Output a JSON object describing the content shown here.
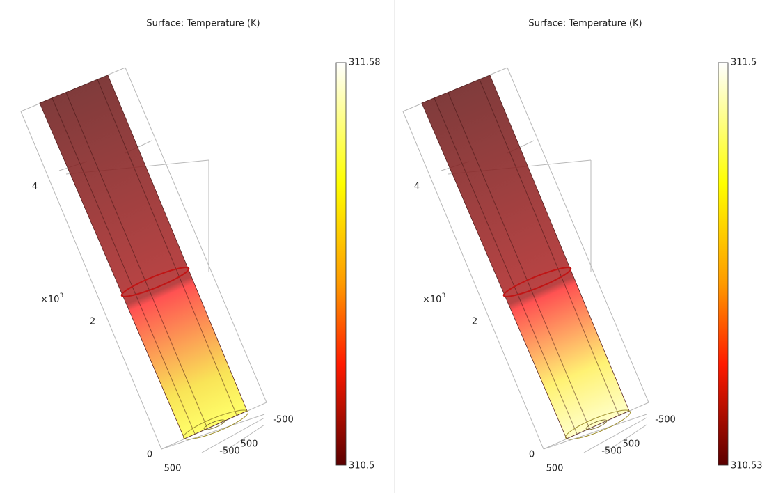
{
  "panels": [
    {
      "title": "Surface: Temperature (K)",
      "colorbar": {
        "max": 311.58,
        "min": 310.5
      },
      "z_ticks": [
        "4",
        "2",
        "0"
      ],
      "multiplier": {
        "base": "×10",
        "exponent": "3"
      },
      "xy_ticks": [
        "500",
        "-500",
        "500",
        "-500"
      ]
    },
    {
      "title": "Surface: Temperature (K)",
      "colorbar": {
        "max": 311.5,
        "min": 310.53
      },
      "z_ticks": [
        "4",
        "2",
        "0"
      ],
      "multiplier": {
        "base": "×10",
        "exponent": "3"
      },
      "xy_ticks": [
        "500",
        "-500",
        "500",
        "-500"
      ]
    }
  ]
}
